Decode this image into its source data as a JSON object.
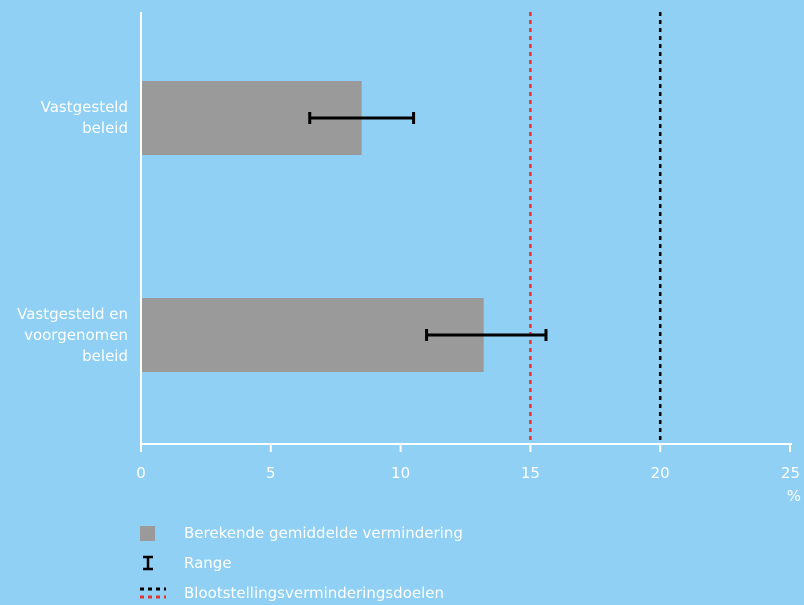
{
  "chart_data": {
    "type": "bar",
    "orientation": "horizontal",
    "categories": [
      "Vastgesteld\nbeleid",
      "Vastgesteld en\nvoorgenomen\nbeleid"
    ],
    "values": [
      8.5,
      13.2
    ],
    "range_low": [
      6.5,
      11.0
    ],
    "range_high": [
      10.5,
      15.6
    ],
    "reference_lines": [
      {
        "value": 15,
        "color": "#e3342f"
      },
      {
        "value": 20,
        "color": "#000000"
      }
    ],
    "xlim": [
      0,
      25
    ],
    "xticks": [
      "0",
      "5",
      "10",
      "15",
      "20",
      "25"
    ],
    "xunit": "%",
    "grid": false,
    "legend_placement": "bottom",
    "legend": {
      "bar": "Berekende gemiddelde vermindering",
      "range": "Range",
      "targets": "Blootstellingsverminderingsdoelen"
    },
    "colors": {
      "background": "#8fd0f4",
      "bar": "#9a9a9a",
      "axis": "#ffffff",
      "errorbar": "#000000"
    }
  }
}
